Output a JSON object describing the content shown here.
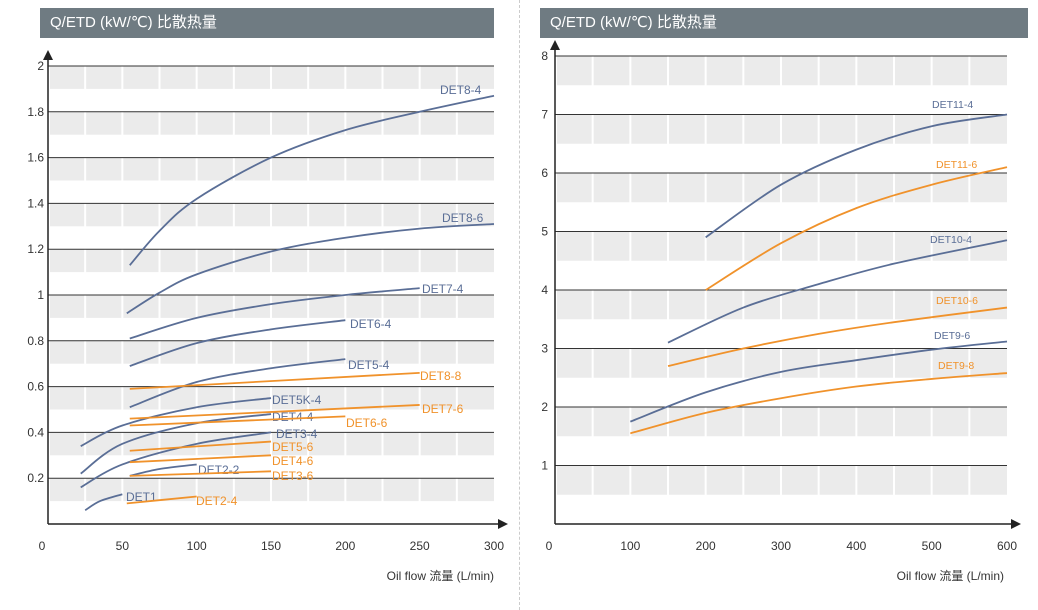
{
  "colors": {
    "blue": "#5a6e96",
    "orange": "#f0922b",
    "band": "#ebebeb",
    "grid": "#333333",
    "title_bg": "#6f7b82"
  },
  "chart_data": [
    {
      "type": "line",
      "title": "Q/ETD (kW/℃) 比散热量",
      "xlabel": "Oil flow 流量 (L/min)",
      "xlim": [
        0,
        300
      ],
      "ylim": [
        0,
        2
      ],
      "xticks": [
        "0",
        "50",
        "100",
        "150",
        "200",
        "250",
        "300"
      ],
      "yticks": [
        "0.2",
        "0.4",
        "0.6",
        "0.8",
        "1",
        "1.2",
        "1.4",
        "1.6",
        "1.8",
        "2"
      ],
      "series": [
        {
          "name": "DET8-4",
          "color": "blue",
          "x": [
            55,
            75,
            100,
            150,
            200,
            250,
            300
          ],
          "y": [
            1.13,
            1.28,
            1.42,
            1.6,
            1.72,
            1.8,
            1.87
          ]
        },
        {
          "name": "DET8-6",
          "color": "blue",
          "x": [
            53,
            75,
            100,
            150,
            200,
            250,
            300
          ],
          "y": [
            0.92,
            1.01,
            1.09,
            1.19,
            1.25,
            1.29,
            1.31
          ]
        },
        {
          "name": "DET7-4",
          "color": "blue",
          "x": [
            55,
            100,
            150,
            200,
            250
          ],
          "y": [
            0.81,
            0.9,
            0.96,
            1.0,
            1.03
          ]
        },
        {
          "name": "DET6-4",
          "color": "blue",
          "x": [
            55,
            100,
            150,
            200
          ],
          "y": [
            0.69,
            0.79,
            0.85,
            0.89
          ]
        },
        {
          "name": "DET5-4",
          "color": "blue",
          "x": [
            55,
            100,
            150,
            200
          ],
          "y": [
            0.51,
            0.62,
            0.68,
            0.72
          ]
        },
        {
          "name": "DET5K-4",
          "color": "blue",
          "x": [
            22,
            50,
            100,
            150
          ],
          "y": [
            0.34,
            0.43,
            0.51,
            0.55
          ]
        },
        {
          "name": "DET4-4",
          "color": "blue",
          "x": [
            22,
            50,
            100,
            150
          ],
          "y": [
            0.22,
            0.35,
            0.44,
            0.48
          ]
        },
        {
          "name": "DET3-4",
          "color": "blue",
          "x": [
            22,
            50,
            100,
            150
          ],
          "y": [
            0.16,
            0.26,
            0.35,
            0.4
          ]
        },
        {
          "name": "DET2-2",
          "color": "blue",
          "x": [
            55,
            75,
            100
          ],
          "y": [
            0.21,
            0.24,
            0.26
          ]
        },
        {
          "name": "DET1",
          "color": "blue",
          "x": [
            25,
            35,
            50
          ],
          "y": [
            0.06,
            0.1,
            0.13
          ]
        },
        {
          "name": "DET8-8",
          "color": "orange",
          "x": [
            55,
            250
          ],
          "y": [
            0.59,
            0.66
          ]
        },
        {
          "name": "DET7-6",
          "color": "orange",
          "x": [
            55,
            250
          ],
          "y": [
            0.46,
            0.52
          ]
        },
        {
          "name": "DET6-6",
          "color": "orange",
          "x": [
            55,
            200
          ],
          "y": [
            0.43,
            0.47
          ]
        },
        {
          "name": "DET5-6",
          "color": "orange",
          "x": [
            55,
            150
          ],
          "y": [
            0.32,
            0.36
          ]
        },
        {
          "name": "DET4-6",
          "color": "orange",
          "x": [
            55,
            150
          ],
          "y": [
            0.27,
            0.3
          ]
        },
        {
          "name": "DET3-6",
          "color": "orange",
          "x": [
            55,
            150
          ],
          "y": [
            0.21,
            0.23
          ]
        },
        {
          "name": "DET2-4",
          "color": "orange",
          "x": [
            53,
            100
          ],
          "y": [
            0.09,
            0.12
          ]
        }
      ]
    },
    {
      "type": "line",
      "title": "Q/ETD (kW/℃) 比散热量",
      "xlabel": "Oil flow 流量 (L/min)",
      "xlim": [
        0,
        600
      ],
      "ylim": [
        0,
        8
      ],
      "xticks": [
        "0",
        "100",
        "200",
        "300",
        "400",
        "500",
        "600"
      ],
      "yticks": [
        "1",
        "2",
        "3",
        "4",
        "5",
        "6",
        "7",
        "8"
      ],
      "series": [
        {
          "name": "DET11-4",
          "color": "blue",
          "x": [
            200,
            300,
            400,
            500,
            600
          ],
          "y": [
            4.9,
            5.8,
            6.4,
            6.8,
            7.0
          ]
        },
        {
          "name": "DET11-6",
          "color": "orange",
          "x": [
            200,
            300,
            400,
            500,
            600
          ],
          "y": [
            4.0,
            4.8,
            5.4,
            5.8,
            6.1
          ]
        },
        {
          "name": "DET10-4",
          "color": "blue",
          "x": [
            150,
            250,
            350,
            450,
            600
          ],
          "y": [
            3.1,
            3.7,
            4.1,
            4.45,
            4.85
          ]
        },
        {
          "name": "DET10-6",
          "color": "orange",
          "x": [
            150,
            250,
            350,
            450,
            600
          ],
          "y": [
            2.7,
            3.0,
            3.25,
            3.45,
            3.7
          ]
        },
        {
          "name": "DET9-6",
          "color": "blue",
          "x": [
            100,
            200,
            300,
            400,
            500,
            600
          ],
          "y": [
            1.75,
            2.25,
            2.6,
            2.8,
            2.98,
            3.12
          ]
        },
        {
          "name": "DET9-8",
          "color": "orange",
          "x": [
            100,
            200,
            300,
            400,
            500,
            600
          ],
          "y": [
            1.55,
            1.9,
            2.15,
            2.35,
            2.48,
            2.58
          ]
        }
      ]
    }
  ]
}
